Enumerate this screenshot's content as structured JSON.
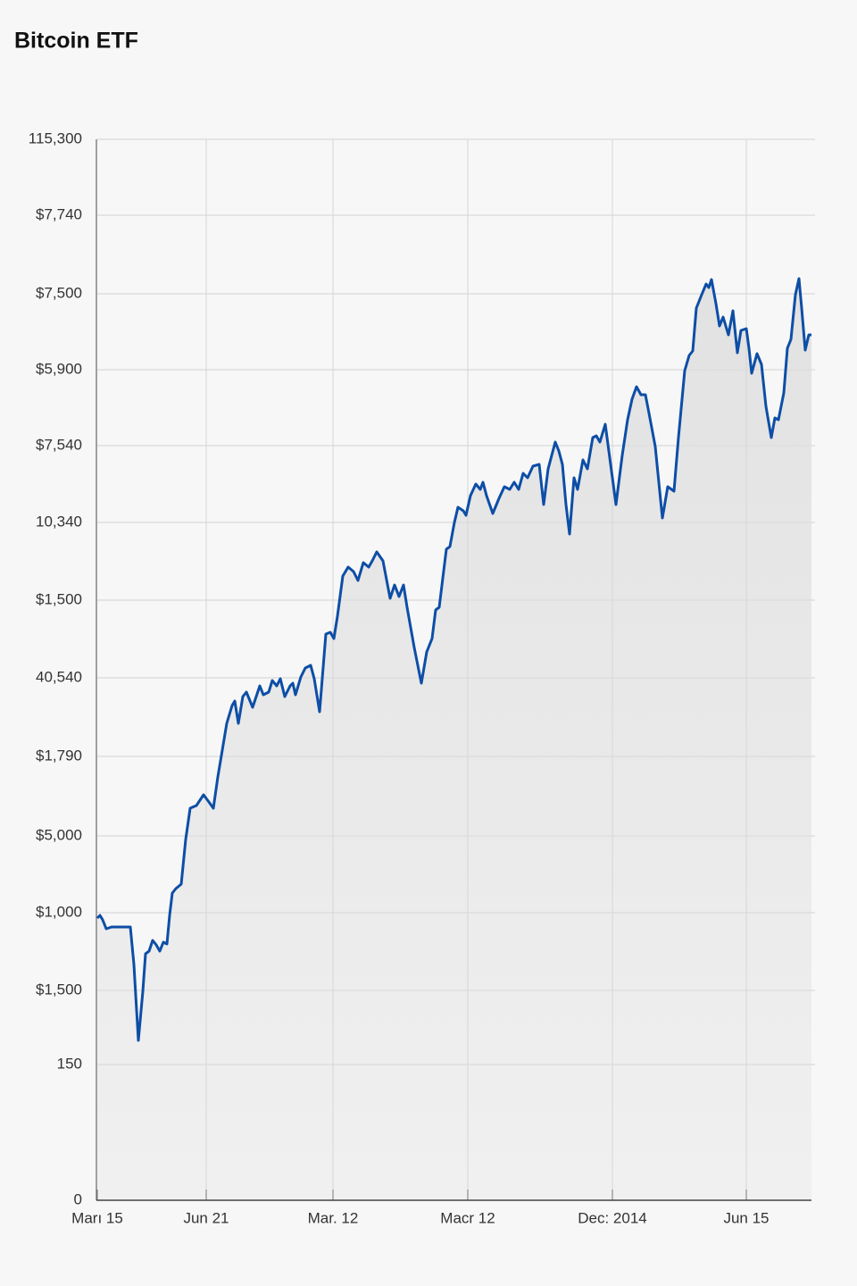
{
  "chart_data": {
    "type": "area",
    "title": "Bitcoin ETF",
    "color": "#0d4ea6",
    "grid": true,
    "xlim": [
      0,
      800
    ],
    "xticks": [
      {
        "value": 0,
        "label": "Marı 15"
      },
      {
        "value": 122,
        "label": "Jun 21"
      },
      {
        "value": 264,
        "label": "Mar. 12"
      },
      {
        "value": 415,
        "label": "Macr 12"
      },
      {
        "value": 577,
        "label": "Dec: 2014"
      },
      {
        "value": 727,
        "label": "Jun 15"
      }
    ],
    "ylim": [
      0,
      1188
    ],
    "yticks": [
      0,
      {
        "value": 152,
        "label": "150"
      },
      {
        "value": 235,
        "label": "$1,500"
      },
      {
        "value": 322,
        "label": "$1,000"
      },
      {
        "value": 408,
        "label": "$5,000"
      },
      {
        "value": 497,
        "label": "$1,790"
      },
      {
        "value": 585,
        "label": "40,540"
      },
      {
        "value": 672,
        "label": "$1,500"
      },
      {
        "value": 759,
        "label": "10,340"
      },
      {
        "value": 845,
        "label": "$7,540"
      },
      {
        "value": 930,
        "label": "$5,900"
      },
      {
        "value": 1015,
        "label": "$7,500"
      },
      {
        "value": 1103,
        "label": "$7,740"
      },
      {
        "value": 1188,
        "label": "115,300"
      }
    ],
    "x": [
      0,
      3,
      6,
      10,
      16,
      37,
      41,
      46,
      51,
      54,
      58,
      62,
      66,
      70,
      74,
      78,
      81,
      84,
      88,
      94,
      99,
      104,
      111,
      119,
      125,
      130,
      135,
      140,
      145,
      151,
      154,
      158,
      163,
      167,
      174,
      182,
      186,
      192,
      196,
      201,
      205,
      210,
      216,
      219,
      222,
      228,
      233,
      239,
      243,
      249,
      256,
      261,
      265,
      269,
      275,
      281,
      287,
      292,
      298,
      304,
      308,
      313,
      320,
      328,
      333,
      338,
      343,
      347,
      355,
      363,
      369,
      375,
      379,
      383,
      391,
      395,
      400,
      404,
      410,
      413,
      418,
      424,
      429,
      432,
      436,
      443,
      450,
      456,
      462,
      467,
      472,
      477,
      482,
      488,
      495,
      500,
      505,
      509,
      513,
      517,
      521,
      525,
      529,
      534,
      538,
      544,
      549,
      555,
      559,
      563,
      569,
      575,
      581,
      588,
      594,
      599,
      604,
      609,
      614,
      619,
      625,
      633,
      639,
      646,
      651,
      658,
      663,
      667,
      671,
      677,
      682,
      685,
      688,
      693,
      697,
      701,
      707,
      712,
      717,
      721,
      727,
      730,
      733,
      739,
      744,
      749,
      755,
      759,
      763,
      769,
      773,
      777,
      782,
      786,
      789,
      793,
      797,
      800
    ],
    "values": [
      316,
      319,
      314,
      304,
      306,
      306,
      264,
      179,
      234,
      276,
      279,
      291,
      286,
      279,
      289,
      287,
      319,
      344,
      349,
      354,
      404,
      439,
      442,
      454,
      446,
      439,
      474,
      504,
      534,
      554,
      559,
      534,
      564,
      569,
      552,
      576,
      566,
      569,
      582,
      576,
      584,
      564,
      576,
      579,
      566,
      586,
      596,
      599,
      584,
      547,
      634,
      636,
      629,
      654,
      699,
      709,
      704,
      694,
      714,
      709,
      716,
      726,
      716,
      674,
      689,
      676,
      689,
      664,
      619,
      579,
      614,
      629,
      661,
      664,
      729,
      732,
      759,
      776,
      772,
      767,
      789,
      802,
      796,
      804,
      789,
      769,
      786,
      799,
      796,
      804,
      796,
      814,
      809,
      822,
      824,
      779,
      819,
      834,
      849,
      839,
      824,
      779,
      746,
      809,
      796,
      829,
      819,
      854,
      856,
      849,
      869,
      824,
      779,
      834,
      874,
      897,
      911,
      902,
      902,
      876,
      844,
      764,
      799,
      794,
      854,
      929,
      946,
      951,
      999,
      1014,
      1026,
      1022,
      1031,
      1004,
      979,
      989,
      969,
      996,
      949,
      974,
      976,
      954,
      926,
      948,
      936,
      889,
      854,
      876,
      874,
      904,
      954,
      964,
      1014,
      1032,
      999,
      952,
      969,
      969
    ]
  }
}
